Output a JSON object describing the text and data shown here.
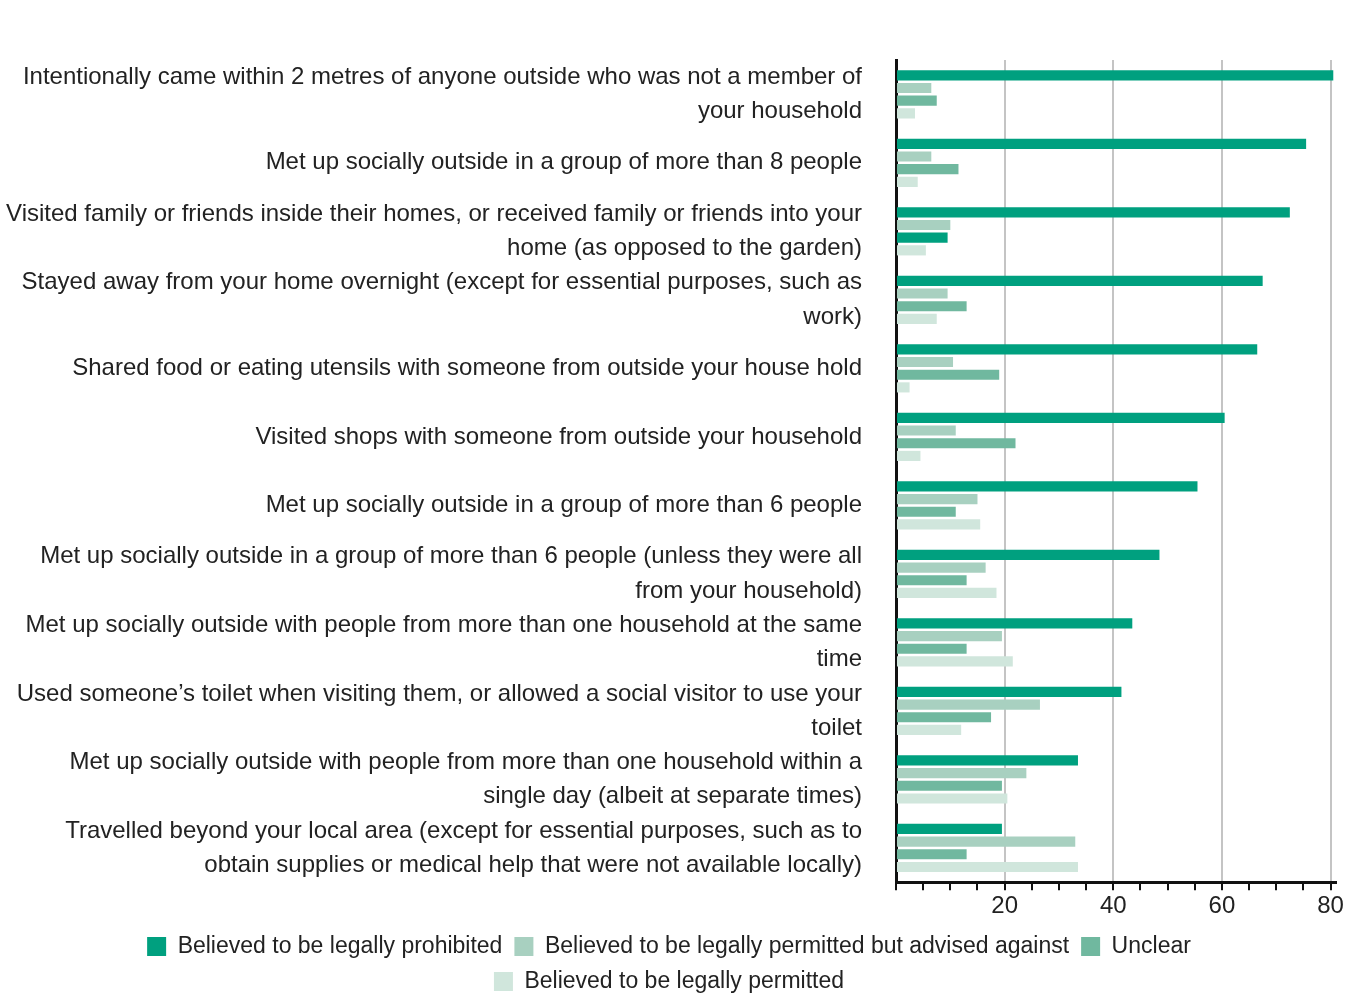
{
  "chart_data": {
    "type": "bar",
    "orientation": "horizontal",
    "categories": [
      "Intentionally came within 2 metres of anyone outside who was not a member of your household",
      "Met up socially outside in a group of more than 8 people",
      "Visited family or friends inside their homes, or received family or friends into your home (as opposed to the garden)",
      "Stayed away from your home overnight (except for essential purposes, such as work)",
      "Shared food or eating utensils with someone from outside your house hold",
      "Visited shops with someone from outside your household",
      "Met up socially outside in a group of more than 6 people",
      "Met up socially outside in a group of more than 6 people (unless they were all from your household)",
      "Met up socially outside with people from more than one household at the same time",
      "Used someone’s toilet when visiting them, or allowed a social visitor to use your toilet",
      "Met up socially outside with people from more than one household within a single day (albeit at separate times)",
      "Travelled beyond your local area (except for essential purposes, such as to obtain supplies or medical help that were not available locally)"
    ],
    "series": [
      {
        "name": "Believed to be legally prohibited",
        "color": "#00a07f",
        "values": [
          80.5,
          75.5,
          72.5,
          67.5,
          66.5,
          60.5,
          55.5,
          48.5,
          43.5,
          41.5,
          33.5,
          19.5
        ]
      },
      {
        "name": "Believed to be legally permitted but advised against",
        "color": "#a8d0c0",
        "values": [
          6.5,
          6.5,
          10,
          9.5,
          10.5,
          11,
          15,
          16.5,
          19.5,
          26.5,
          24,
          33
        ]
      },
      {
        "name": "Unclear",
        "color": "#70b89f",
        "colors": [
          "#70b89f",
          "#70b89f",
          "#00a07f",
          "#70b89f",
          "#70b89f",
          "#70b89f",
          "#70b89f",
          "#70b89f",
          "#70b89f",
          "#70b89f",
          "#70b89f",
          "#70b89f"
        ],
        "values": [
          7.5,
          11.5,
          9.5,
          13,
          19,
          22,
          11,
          13,
          13,
          17.5,
          19.5,
          13
        ]
      },
      {
        "name": "Believed to be legally permitted",
        "color": "#d0e6dc",
        "values": [
          3.5,
          4,
          5.5,
          7.5,
          2.5,
          4.5,
          15.5,
          18.5,
          21.5,
          12,
          20.5,
          33.5
        ]
      }
    ],
    "xlim": [
      0,
      81
    ],
    "xticks": [
      {
        "value": 0,
        "label": null
      },
      {
        "value": 5,
        "label": null
      },
      {
        "value": 10,
        "label": null
      },
      {
        "value": 15,
        "label": null
      },
      20,
      {
        "value": 25,
        "label": null
      },
      {
        "value": 30,
        "label": null
      },
      {
        "value": 35,
        "label": null
      },
      40,
      {
        "value": 45,
        "label": null
      },
      {
        "value": 50,
        "label": null
      },
      {
        "value": 55,
        "label": null
      },
      60,
      {
        "value": 65,
        "label": null
      },
      {
        "value": 70,
        "label": null
      },
      {
        "value": 75,
        "label": null
      },
      80
    ],
    "grid": "x",
    "legend": "bottom"
  }
}
